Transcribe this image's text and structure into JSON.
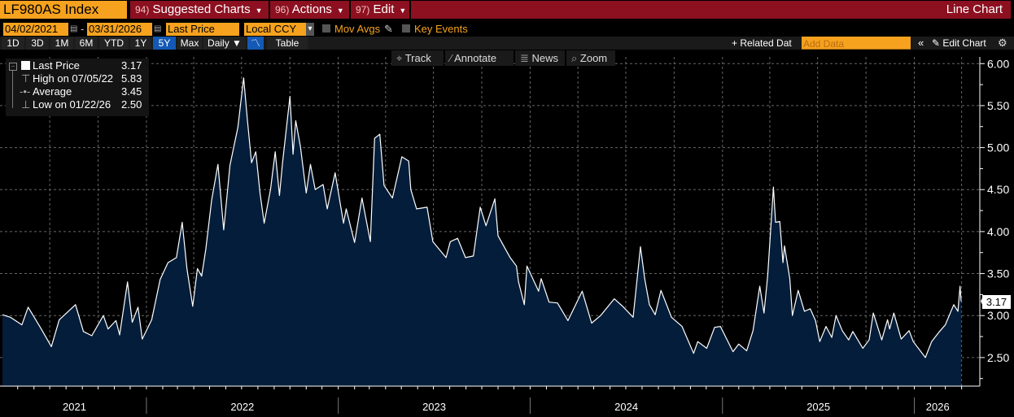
{
  "header": {
    "ticker": "LF980AS Index",
    "buttons": [
      {
        "num": "94)",
        "label": "Suggested Charts"
      },
      {
        "num": "96)",
        "label": "Actions"
      },
      {
        "num": "97)",
        "label": "Edit"
      }
    ],
    "chart_type": "Line Chart"
  },
  "controls": {
    "start_date": "04/02/2021",
    "sep": "-",
    "end_date": "03/31/2026",
    "field": "Last Price",
    "currency": "Local CCY",
    "mov_avgs": "Mov Avgs",
    "key_events": "Key Events"
  },
  "tabs": [
    {
      "label": "1D"
    },
    {
      "label": "3D"
    },
    {
      "label": "1M"
    },
    {
      "label": "6M"
    },
    {
      "label": "YTD"
    },
    {
      "label": "1Y"
    },
    {
      "label": "5Y",
      "selected": true
    },
    {
      "label": "Max"
    },
    {
      "label": "Daily ▼"
    },
    {
      "label": ""
    },
    {
      "label": "Table"
    }
  ],
  "right_controls": {
    "related": "+ Related Dat",
    "add_data_placeholder": "Add Data",
    "collapse": "«",
    "edit_chart": "Edit Chart"
  },
  "chart_tools": [
    {
      "icon": "crosshair-icon",
      "label": "Track"
    },
    {
      "icon": "pencil-icon",
      "label": "Annotate"
    },
    {
      "icon": "news-icon",
      "label": "News"
    },
    {
      "icon": "magnifier-icon",
      "label": "Zoom"
    }
  ],
  "legend": {
    "rows": [
      {
        "label": "Last Price",
        "value": "3.17"
      },
      {
        "label": "High on 07/05/22",
        "value": "5.83"
      },
      {
        "label": "Average",
        "value": "3.45"
      },
      {
        "label": "Low on 01/22/26",
        "value": "2.50"
      }
    ]
  },
  "colors": {
    "accent": "#f6a21e",
    "header_red": "#8c1020",
    "fill": "#041d3a",
    "line": "#ffffff",
    "selected_tab": "#1459b5"
  },
  "chart_data": {
    "type": "area",
    "series": [
      {
        "name": "Last Price",
        "last": "3.17",
        "points": [
          [
            "2021-04-02",
            3.01
          ],
          [
            "2021-04-17",
            2.98
          ],
          [
            "2021-05-09",
            2.89
          ],
          [
            "2021-05-21",
            3.1
          ],
          [
            "2021-06-13",
            2.86
          ],
          [
            "2021-07-04",
            2.63
          ],
          [
            "2021-07-19",
            2.95
          ],
          [
            "2021-08-19",
            3.13
          ],
          [
            "2021-09-03",
            2.81
          ],
          [
            "2021-09-19",
            2.76
          ],
          [
            "2021-10-11",
            3.0
          ],
          [
            "2021-10-20",
            2.84
          ],
          [
            "2021-11-04",
            2.94
          ],
          [
            "2021-11-11",
            2.77
          ],
          [
            "2021-11-26",
            3.4
          ],
          [
            "2021-12-05",
            2.92
          ],
          [
            "2021-12-16",
            3.1
          ],
          [
            "2021-12-24",
            2.72
          ],
          [
            "2022-01-11",
            2.95
          ],
          [
            "2022-01-27",
            3.43
          ],
          [
            "2022-02-11",
            3.63
          ],
          [
            "2022-02-27",
            3.69
          ],
          [
            "2022-03-10",
            4.11
          ],
          [
            "2022-03-19",
            3.56
          ],
          [
            "2022-03-30",
            3.11
          ],
          [
            "2022-04-08",
            3.56
          ],
          [
            "2022-04-16",
            3.47
          ],
          [
            "2022-04-24",
            3.79
          ],
          [
            "2022-05-05",
            4.37
          ],
          [
            "2022-05-17",
            4.8
          ],
          [
            "2022-05-28",
            4.02
          ],
          [
            "2022-06-09",
            4.79
          ],
          [
            "2022-06-24",
            5.24
          ],
          [
            "2022-07-05",
            5.83
          ],
          [
            "2022-07-12",
            5.33
          ],
          [
            "2022-07-20",
            4.82
          ],
          [
            "2022-07-28",
            4.95
          ],
          [
            "2022-08-05",
            4.46
          ],
          [
            "2022-08-13",
            4.1
          ],
          [
            "2022-08-25",
            4.5
          ],
          [
            "2022-09-03",
            4.95
          ],
          [
            "2022-09-11",
            4.43
          ],
          [
            "2022-09-17",
            4.82
          ],
          [
            "2022-10-01",
            5.61
          ],
          [
            "2022-10-07",
            4.92
          ],
          [
            "2022-10-12",
            5.32
          ],
          [
            "2022-10-21",
            5.01
          ],
          [
            "2022-11-01",
            4.46
          ],
          [
            "2022-11-09",
            4.8
          ],
          [
            "2022-11-18",
            4.5
          ],
          [
            "2022-12-03",
            4.56
          ],
          [
            "2022-12-11",
            4.27
          ],
          [
            "2022-12-26",
            4.7
          ],
          [
            "2023-01-11",
            4.1
          ],
          [
            "2023-01-16",
            4.27
          ],
          [
            "2023-02-01",
            3.87
          ],
          [
            "2023-02-15",
            4.4
          ],
          [
            "2023-03-03",
            3.88
          ],
          [
            "2023-03-11",
            5.11
          ],
          [
            "2023-03-21",
            5.16
          ],
          [
            "2023-03-29",
            4.55
          ],
          [
            "2023-04-14",
            4.4
          ],
          [
            "2023-05-02",
            4.89
          ],
          [
            "2023-05-15",
            4.84
          ],
          [
            "2023-05-19",
            4.5
          ],
          [
            "2023-05-30",
            4.27
          ],
          [
            "2023-06-19",
            4.29
          ],
          [
            "2023-06-30",
            3.88
          ],
          [
            "2023-07-25",
            3.69
          ],
          [
            "2023-08-02",
            3.88
          ],
          [
            "2023-08-16",
            3.92
          ],
          [
            "2023-08-31",
            3.69
          ],
          [
            "2023-09-15",
            3.71
          ],
          [
            "2023-09-28",
            4.29
          ],
          [
            "2023-10-09",
            4.07
          ],
          [
            "2023-10-26",
            4.39
          ],
          [
            "2023-11-01",
            3.95
          ],
          [
            "2023-11-24",
            3.69
          ],
          [
            "2023-12-06",
            3.59
          ],
          [
            "2023-12-10",
            3.4
          ],
          [
            "2023-12-21",
            3.13
          ],
          [
            "2023-12-26",
            3.59
          ],
          [
            "2024-01-17",
            3.29
          ],
          [
            "2024-01-22",
            3.44
          ],
          [
            "2024-02-06",
            3.16
          ],
          [
            "2024-02-22",
            3.15
          ],
          [
            "2024-03-13",
            2.94
          ],
          [
            "2024-04-09",
            3.29
          ],
          [
            "2024-04-27",
            2.91
          ],
          [
            "2024-05-14",
            3.0
          ],
          [
            "2024-06-09",
            3.2
          ],
          [
            "2024-06-25",
            3.11
          ],
          [
            "2024-07-15",
            2.98
          ],
          [
            "2024-07-29",
            3.82
          ],
          [
            "2024-08-06",
            3.44
          ],
          [
            "2024-08-15",
            3.13
          ],
          [
            "2024-08-26",
            3.01
          ],
          [
            "2024-09-06",
            3.3
          ],
          [
            "2024-09-26",
            2.98
          ],
          [
            "2024-10-16",
            2.87
          ],
          [
            "2024-11-07",
            2.55
          ],
          [
            "2024-11-15",
            2.69
          ],
          [
            "2024-12-02",
            2.61
          ],
          [
            "2024-12-17",
            2.86
          ],
          [
            "2024-12-28",
            2.87
          ],
          [
            "2025-01-21",
            2.57
          ],
          [
            "2025-02-01",
            2.66
          ],
          [
            "2025-02-16",
            2.58
          ],
          [
            "2025-02-28",
            2.82
          ],
          [
            "2025-03-13",
            3.35
          ],
          [
            "2025-03-21",
            3.03
          ],
          [
            "2025-03-28",
            3.47
          ],
          [
            "2025-04-08",
            4.53
          ],
          [
            "2025-04-12",
            4.11
          ],
          [
            "2025-04-20",
            4.12
          ],
          [
            "2025-04-26",
            3.63
          ],
          [
            "2025-04-29",
            3.83
          ],
          [
            "2025-05-09",
            3.44
          ],
          [
            "2025-05-14",
            3.0
          ],
          [
            "2025-05-25",
            3.3
          ],
          [
            "2025-06-06",
            3.05
          ],
          [
            "2025-06-17",
            3.08
          ],
          [
            "2025-06-27",
            2.94
          ],
          [
            "2025-07-05",
            2.69
          ],
          [
            "2025-07-17",
            2.87
          ],
          [
            "2025-07-28",
            2.74
          ],
          [
            "2025-08-05",
            3.0
          ],
          [
            "2025-08-17",
            2.82
          ],
          [
            "2025-08-29",
            2.71
          ],
          [
            "2025-09-06",
            2.81
          ],
          [
            "2025-09-25",
            2.61
          ],
          [
            "2025-10-07",
            2.71
          ],
          [
            "2025-10-15",
            3.03
          ],
          [
            "2025-10-31",
            2.71
          ],
          [
            "2025-11-11",
            2.95
          ],
          [
            "2025-11-15",
            2.84
          ],
          [
            "2025-11-23",
            3.03
          ],
          [
            "2025-12-07",
            2.72
          ],
          [
            "2025-12-22",
            2.82
          ],
          [
            "2025-12-30",
            2.69
          ],
          [
            "2026-01-22",
            2.5
          ],
          [
            "2026-02-03",
            2.69
          ],
          [
            "2026-02-18",
            2.81
          ],
          [
            "2026-03-01",
            2.89
          ],
          [
            "2026-03-17",
            3.13
          ],
          [
            "2026-03-25",
            3.05
          ],
          [
            "2026-03-29",
            3.35
          ],
          [
            "2026-03-31",
            3.17
          ]
        ]
      }
    ],
    "xlim": [
      "2021-04-02",
      "2026-03-31"
    ],
    "ylim": [
      2.16,
      6.08
    ],
    "yticks": [
      "2.50",
      "3.00",
      "3.50",
      "4.00",
      "4.50",
      "5.00",
      "5.50",
      "6.00"
    ],
    "xtick_labels": [
      "2021",
      "2022",
      "2023",
      "2024",
      "2025",
      "2026"
    ],
    "grid": true,
    "y_axis_side": "right",
    "legend_placement": "top-left"
  }
}
